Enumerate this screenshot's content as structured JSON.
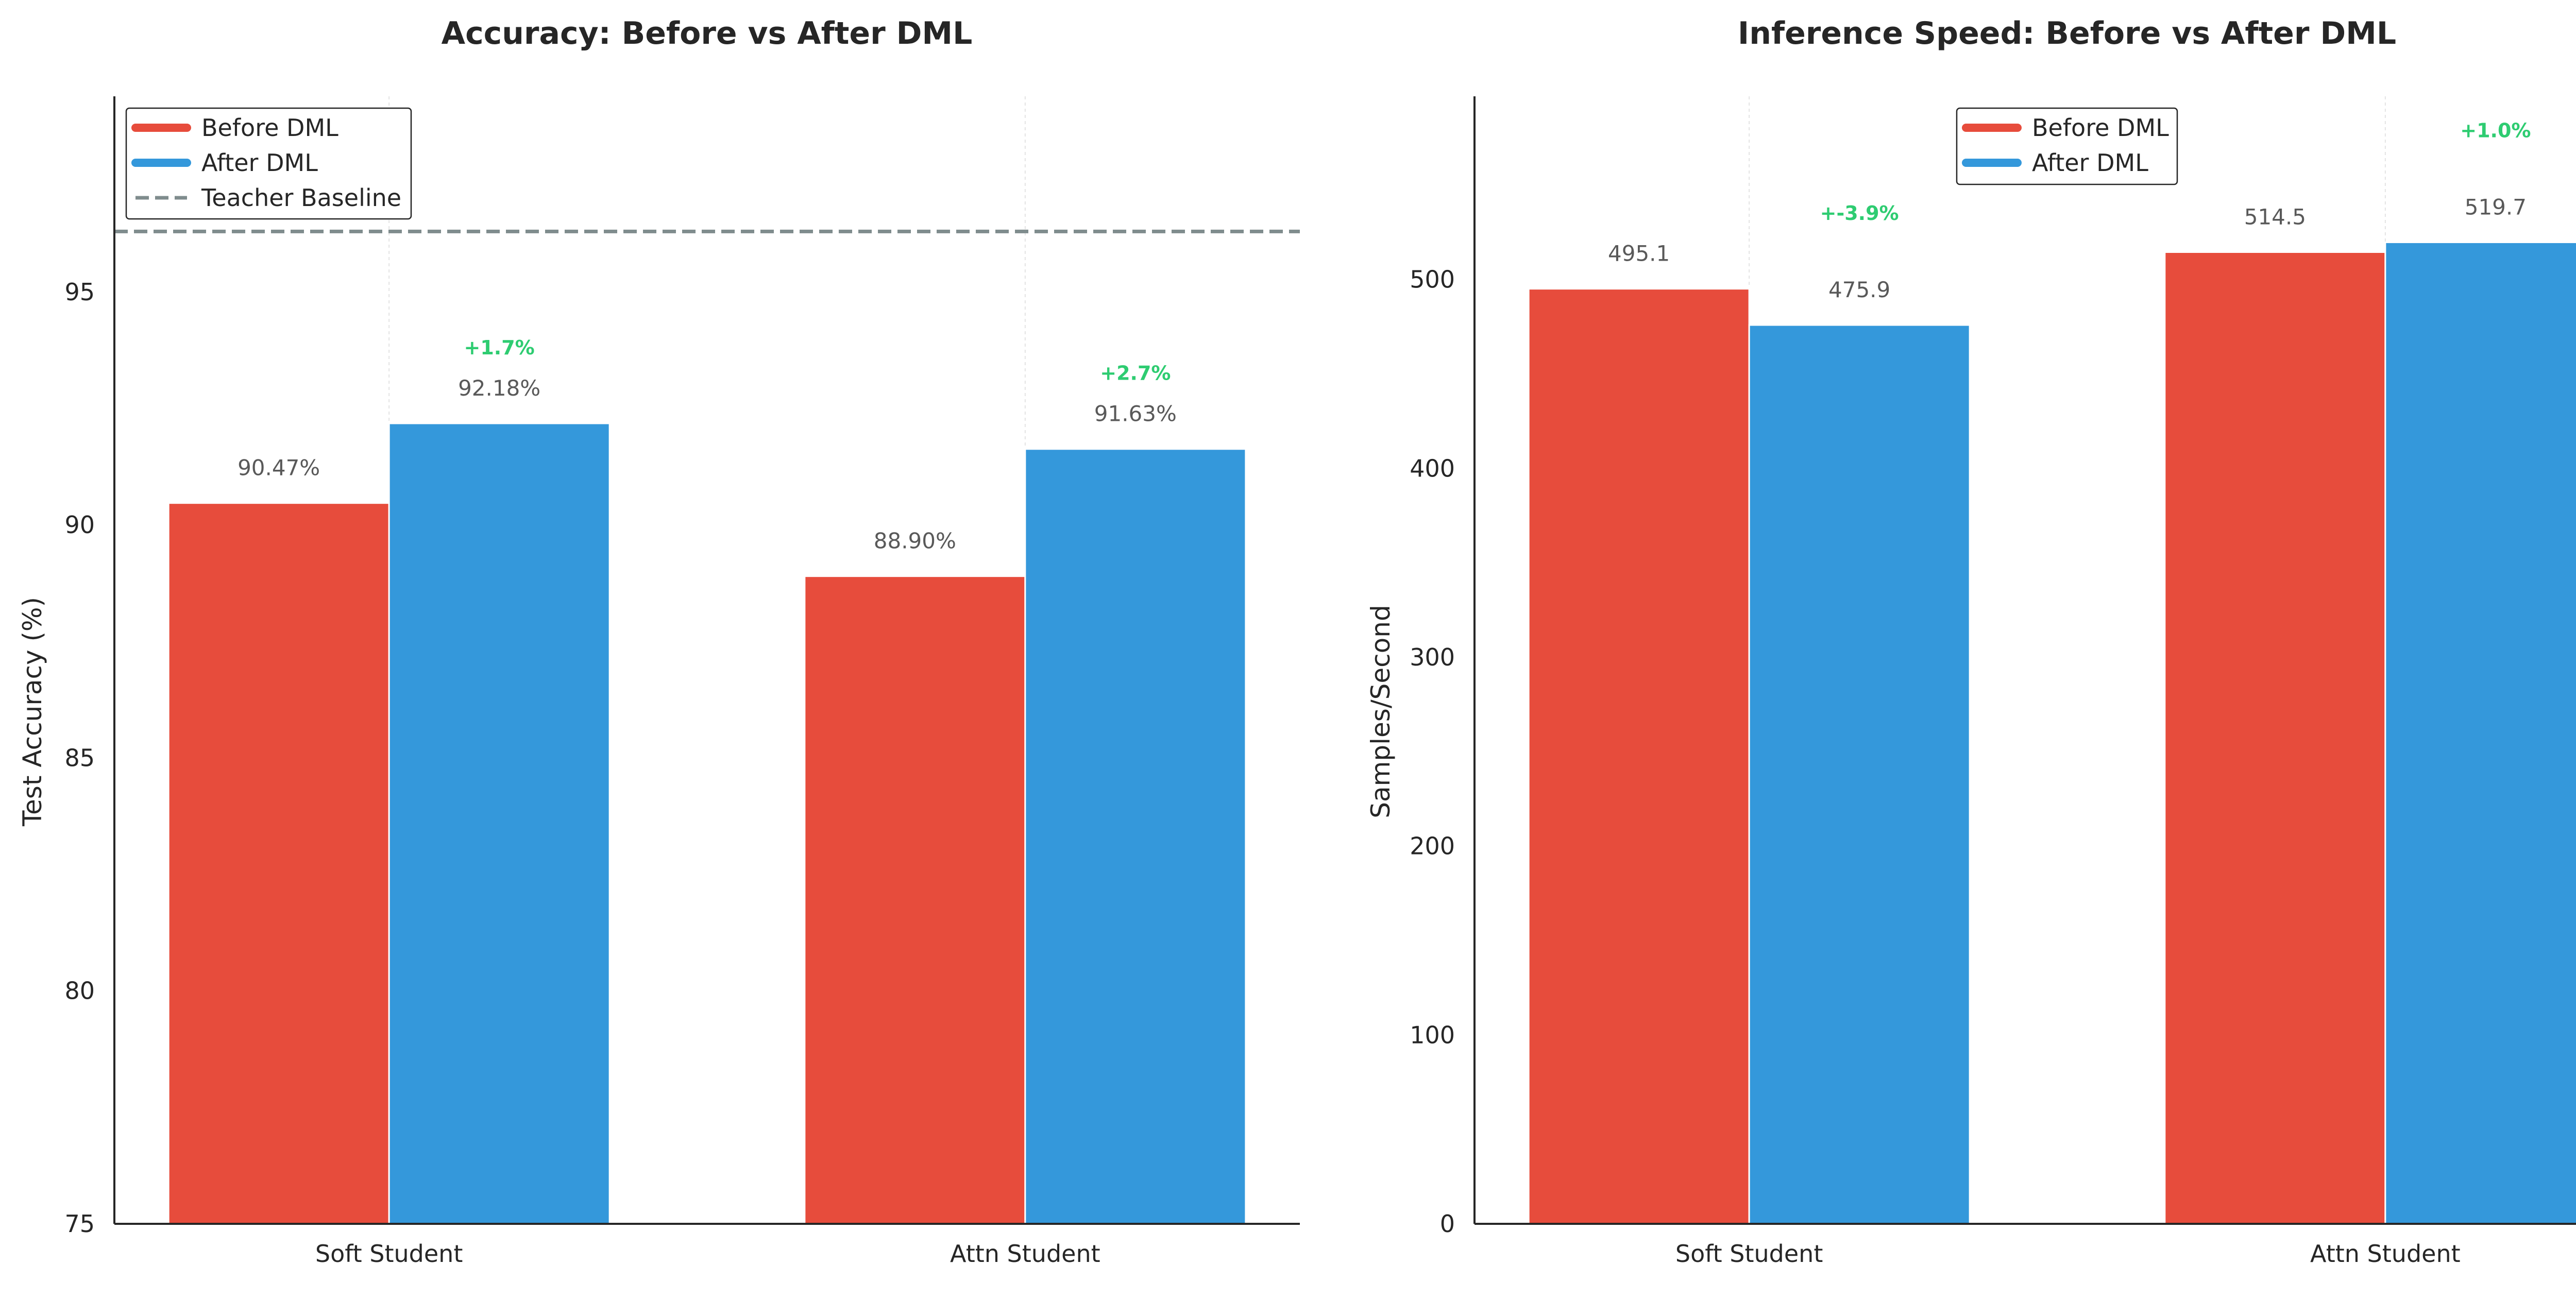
{
  "colors": {
    "before": "#E74C3C",
    "after": "#3498DB",
    "teacher": "#7F8C8D",
    "delta": "#2ECC71",
    "value_label": "#595959"
  },
  "chart_data": [
    {
      "type": "bar",
      "title": "Accuracy: Before vs After DML",
      "xlabel": "",
      "ylabel": "Test Accuracy (%)",
      "categories": [
        "Soft Student",
        "Attn Student"
      ],
      "series": [
        {
          "name": "Before DML",
          "values": [
            90.47,
            88.9
          ],
          "labels": [
            "90.47%",
            "88.90%"
          ]
        },
        {
          "name": "After DML",
          "values": [
            92.18,
            91.63
          ],
          "labels": [
            "92.18%",
            "91.63%"
          ]
        }
      ],
      "deltas": [
        "+1.7%",
        "+2.7%"
      ],
      "reference_line": {
        "name": "Teacher Baseline",
        "value": 96.3,
        "style": "dashed"
      },
      "ylim": [
        75,
        99.2
      ],
      "yticks": [
        75,
        80,
        85,
        90,
        95
      ],
      "legend": "top-left",
      "grid": "vertical"
    },
    {
      "type": "bar",
      "title": "Inference Speed: Before vs After DML",
      "xlabel": "",
      "ylabel": "Samples/Second",
      "categories": [
        "Soft Student",
        "Attn Student"
      ],
      "series": [
        {
          "name": "Before DML",
          "values": [
            495.1,
            514.5
          ],
          "labels": [
            "495.1",
            "514.5"
          ]
        },
        {
          "name": "After DML",
          "values": [
            475.9,
            519.7
          ],
          "labels": [
            "475.9",
            "519.7"
          ]
        }
      ],
      "deltas": [
        "+-3.9%",
        "+1.0%"
      ],
      "ylim": [
        0,
        597
      ],
      "yticks": [
        0,
        100,
        200,
        300,
        400,
        500
      ],
      "legend": "top-center",
      "grid": "vertical"
    }
  ]
}
